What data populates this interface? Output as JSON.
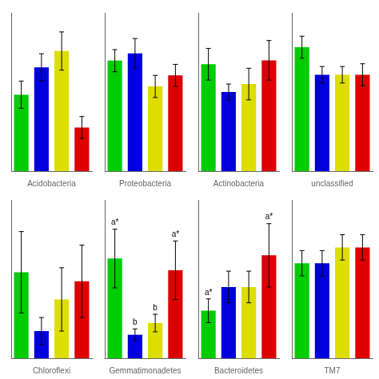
{
  "chart_data": [
    {
      "type": "bar",
      "xlabel": "Acidobacteria",
      "values": [
        0.28,
        0.38,
        0.44,
        0.16
      ],
      "errors": [
        0.05,
        0.05,
        0.07,
        0.04
      ],
      "colors": [
        "#00cc00",
        "#0000dd",
        "#dddd00",
        "#dd0000"
      ],
      "ylim": [
        0,
        0.58
      ],
      "tick_labels": false,
      "grid": false
    },
    {
      "type": "bar",
      "xlabel": "Proteobacteria",
      "values": [
        0.3,
        0.32,
        0.23,
        0.26
      ],
      "errors": [
        0.03,
        0.04,
        0.03,
        0.03
      ],
      "colors": [
        "#00cc00",
        "#0000dd",
        "#dddd00",
        "#dd0000"
      ],
      "ylim": [
        0,
        0.43
      ],
      "tick_labels": false,
      "grid": false
    },
    {
      "type": "bar",
      "xlabel": "Actinobacteria",
      "values": [
        0.27,
        0.2,
        0.22,
        0.28
      ],
      "errors": [
        0.04,
        0.02,
        0.04,
        0.05
      ],
      "colors": [
        "#00cc00",
        "#0000dd",
        "#dddd00",
        "#dd0000"
      ],
      "ylim": [
        0,
        0.4
      ],
      "tick_labels": false,
      "grid": false
    },
    {
      "type": "bar",
      "xlabel": "unclassified",
      "values": [
        0.09,
        0.07,
        0.07,
        0.07
      ],
      "errors": [
        0.008,
        0.006,
        0.006,
        0.008
      ],
      "colors": [
        "#00cc00",
        "#0000dd",
        "#dddd00",
        "#dd0000"
      ],
      "ylim": [
        0,
        0.115
      ],
      "tick_labels": false,
      "grid": false
    },
    {
      "type": "bar",
      "xlabel": "Chloroflexi",
      "values": [
        0.19,
        0.06,
        0.13,
        0.17
      ],
      "errors": [
        0.09,
        0.03,
        0.07,
        0.08
      ],
      "colors": [
        "#00cc00",
        "#0000dd",
        "#dddd00",
        "#dd0000"
      ],
      "ylim": [
        0,
        0.35
      ],
      "tick_labels": false,
      "grid": false
    },
    {
      "type": "bar",
      "xlabel": "Gemmatimonadetes",
      "values": [
        0.17,
        0.04,
        0.06,
        0.15
      ],
      "errors": [
        0.05,
        0.01,
        0.015,
        0.05
      ],
      "colors": [
        "#00cc00",
        "#0000dd",
        "#dddd00",
        "#dd0000"
      ],
      "ylim": [
        0,
        0.27
      ],
      "tick_labels": false,
      "grid": false,
      "annotations": [
        "a*",
        "b",
        "b",
        "a*"
      ]
    },
    {
      "type": "bar",
      "xlabel": "Bacteroidetes",
      "values": [
        0.06,
        0.09,
        0.09,
        0.13
      ],
      "errors": [
        0.015,
        0.02,
        0.02,
        0.04
      ],
      "colors": [
        "#00cc00",
        "#0000dd",
        "#dddd00",
        "#dd0000"
      ],
      "ylim": [
        0,
        0.2
      ],
      "tick_labels": false,
      "grid": false,
      "annotations": [
        "a*",
        null,
        null,
        "a*"
      ]
    },
    {
      "type": "bar",
      "xlabel": "TM7",
      "values": [
        0.06,
        0.06,
        0.07,
        0.07
      ],
      "errors": [
        0.008,
        0.008,
        0.008,
        0.008
      ],
      "colors": [
        "#00cc00",
        "#0000dd",
        "#dddd00",
        "#dd0000"
      ],
      "ylim": [
        0,
        0.1
      ],
      "tick_labels": false,
      "grid": false
    }
  ]
}
